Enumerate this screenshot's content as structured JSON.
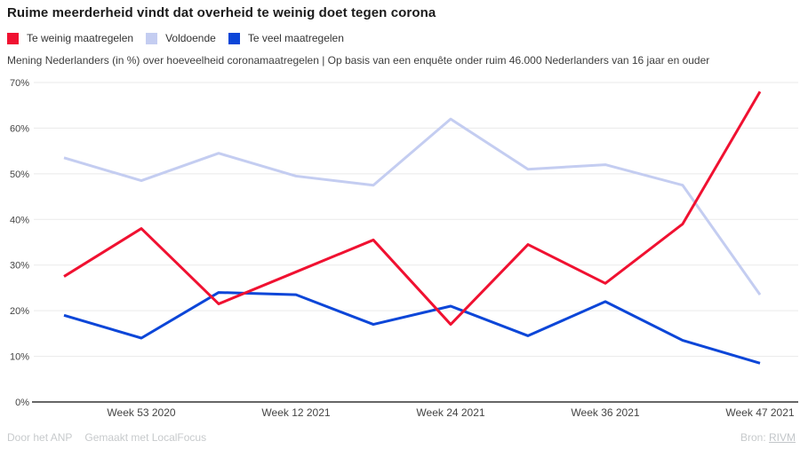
{
  "header": {
    "title": "Ruime meerderheid vindt dat overheid te weinig doet tegen corona",
    "subtitle": "Mening Nederlanders (in %) over hoeveelheid coronamaatregelen | Op basis van een enquête onder ruim 46.000 Nederlanders van 16 jaar en ouder"
  },
  "chart_data": {
    "type": "line",
    "num_points": 10,
    "ylim": [
      0,
      70
    ],
    "grid": true,
    "legend_position": "top",
    "y_ticks": [
      "0%",
      "10%",
      "20%",
      "30%",
      "40%",
      "50%",
      "60%",
      "70%"
    ],
    "x_tick_labels": [
      {
        "index": 1,
        "label": "Week 53 2020"
      },
      {
        "index": 3,
        "label": "Week 12 2021"
      },
      {
        "index": 5,
        "label": "Week 24 2021"
      },
      {
        "index": 7,
        "label": "Week 36 2021"
      },
      {
        "index": 9,
        "label": "Week 47 2021"
      }
    ],
    "series": [
      {
        "name": "Te weinig maatregelen",
        "color": "#f01131",
        "values": [
          27.5,
          38,
          21.5,
          28.5,
          35.5,
          17,
          34.5,
          26,
          39,
          68
        ]
      },
      {
        "name": "Voldoende",
        "color": "#c4cdf1",
        "values": [
          53.5,
          48.5,
          54.5,
          49.5,
          47.5,
          62,
          51,
          52,
          47.5,
          23.5
        ]
      },
      {
        "name": "Te veel maatregelen",
        "color": "#0c46d8",
        "values": [
          19,
          14,
          24,
          23.5,
          17,
          21,
          14.5,
          22,
          13.5,
          8.5
        ]
      }
    ]
  },
  "footer": {
    "credit_1": "Door het ANP",
    "credit_2": "Gemaakt met LocalFocus",
    "source_label": "Bron:",
    "source_link": "RIVM"
  },
  "colors": {
    "background": "#ffffff",
    "grid": "#eaeaea",
    "axis_line": "#333333",
    "axis_text": "#444444",
    "footer_text": "#c7cacc"
  }
}
